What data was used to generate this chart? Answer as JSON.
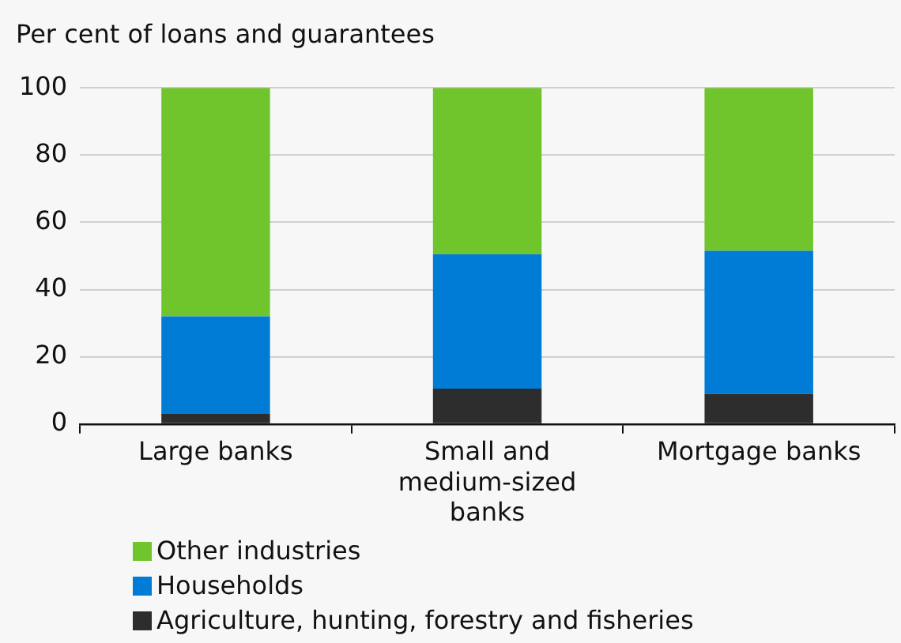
{
  "chart_data": {
    "type": "bar",
    "ylabel": "Per cent of loans and guarantees",
    "categories": [
      "Large banks",
      "Small and medium-sized banks",
      "Mortgage banks"
    ],
    "stacked": true,
    "series": [
      {
        "name": "Agriculture, hunting, forestry and fisheries",
        "color": "#2d2d2d",
        "values": [
          3,
          10.5,
          9
        ]
      },
      {
        "name": "Households",
        "color": "#007bd6",
        "values": [
          29,
          40,
          42.5
        ]
      },
      {
        "name": "Other industries",
        "color": "#6fc52b",
        "values": [
          68,
          49.5,
          48.5
        ]
      }
    ],
    "ylim": [
      0,
      100
    ],
    "yticks": [
      0,
      20,
      40,
      60,
      80,
      100
    ],
    "grid": "y",
    "legend": "bottom"
  }
}
